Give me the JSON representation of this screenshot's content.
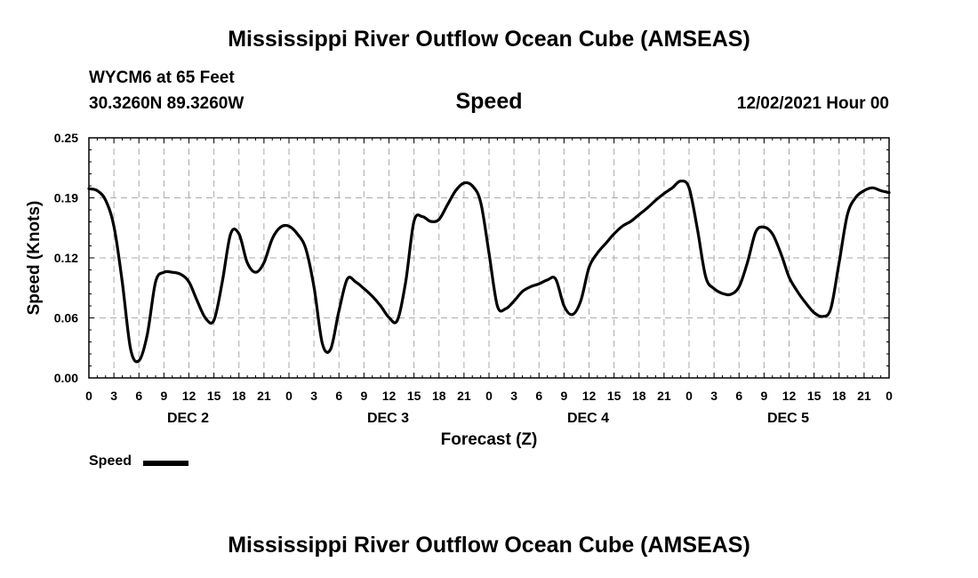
{
  "header": {
    "title": "Mississippi River Outflow Ocean Cube (AMSEAS)",
    "station": "WYCM6 at 65 Feet",
    "coords": "30.3260N  89.3260W",
    "subtitle": "Speed",
    "timestamp": "12/02/2021 Hour 00"
  },
  "footer": {
    "title": "Mississippi River Outflow Ocean Cube (AMSEAS)"
  },
  "legend": {
    "label": "Speed",
    "color": "#000000"
  },
  "chart_data": {
    "type": "line",
    "title": "Speed",
    "xlabel": "Forecast (Z)",
    "ylabel": "Speed (Knots)",
    "x_unit": "hours",
    "xlim": [
      0,
      96
    ],
    "ylim": [
      0,
      0.25
    ],
    "y_ticks": [
      "0.00",
      "0.06",
      "0.12",
      "0.19",
      "0.25"
    ],
    "x_tick_labels": [
      "0",
      "3",
      "6",
      "9",
      "12",
      "15",
      "18",
      "21",
      "0",
      "3",
      "6",
      "9",
      "12",
      "15",
      "18",
      "21",
      "0",
      "3",
      "6",
      "9",
      "12",
      "15",
      "18",
      "21",
      "0",
      "3",
      "6",
      "9",
      "12",
      "15",
      "18",
      "21",
      "0"
    ],
    "day_labels": [
      "DEC 2",
      "DEC 3",
      "DEC 4",
      "DEC 5"
    ],
    "grid": true,
    "legend_position": "bottom-left",
    "series": [
      {
        "name": "Speed",
        "color": "#000000",
        "x": [
          0,
          1,
          2,
          3,
          4,
          5,
          6,
          7,
          8,
          9,
          10,
          11,
          12,
          13,
          14,
          15,
          16,
          17,
          18,
          19,
          20,
          21,
          22,
          23,
          24,
          25,
          26,
          27,
          28,
          29,
          30,
          31,
          32,
          33,
          34,
          35,
          36,
          37,
          38,
          39,
          40,
          41,
          42,
          43,
          44,
          45,
          46,
          47,
          48,
          49,
          50,
          51,
          52,
          53,
          54,
          55,
          56,
          57,
          58,
          59,
          60,
          61,
          62,
          63,
          64,
          65,
          66,
          67,
          68,
          69,
          70,
          71,
          72,
          73,
          74,
          75,
          76,
          77,
          78,
          79,
          80,
          81,
          82,
          83,
          84,
          85,
          86,
          87,
          88,
          89,
          90,
          91,
          92,
          93,
          94,
          95,
          96
        ],
        "values": [
          0.197,
          0.195,
          0.185,
          0.158,
          0.1,
          0.03,
          0.018,
          0.045,
          0.1,
          0.11,
          0.11,
          0.108,
          0.1,
          0.08,
          0.062,
          0.06,
          0.1,
          0.15,
          0.15,
          0.12,
          0.11,
          0.12,
          0.145,
          0.157,
          0.158,
          0.15,
          0.135,
          0.095,
          0.036,
          0.03,
          0.07,
          0.103,
          0.1,
          0.093,
          0.085,
          0.075,
          0.063,
          0.06,
          0.1,
          0.163,
          0.168,
          0.163,
          0.165,
          0.18,
          0.195,
          0.203,
          0.2,
          0.183,
          0.13,
          0.075,
          0.072,
          0.08,
          0.09,
          0.095,
          0.098,
          0.102,
          0.103,
          0.075,
          0.066,
          0.08,
          0.115,
          0.13,
          0.14,
          0.15,
          0.158,
          0.163,
          0.17,
          0.177,
          0.185,
          0.192,
          0.198,
          0.205,
          0.198,
          0.155,
          0.105,
          0.093,
          0.088,
          0.087,
          0.095,
          0.12,
          0.152,
          0.157,
          0.15,
          0.13,
          0.105,
          0.09,
          0.078,
          0.068,
          0.064,
          0.072,
          0.12,
          0.17,
          0.188,
          0.195,
          0.198,
          0.195,
          0.193
        ]
      }
    ]
  }
}
